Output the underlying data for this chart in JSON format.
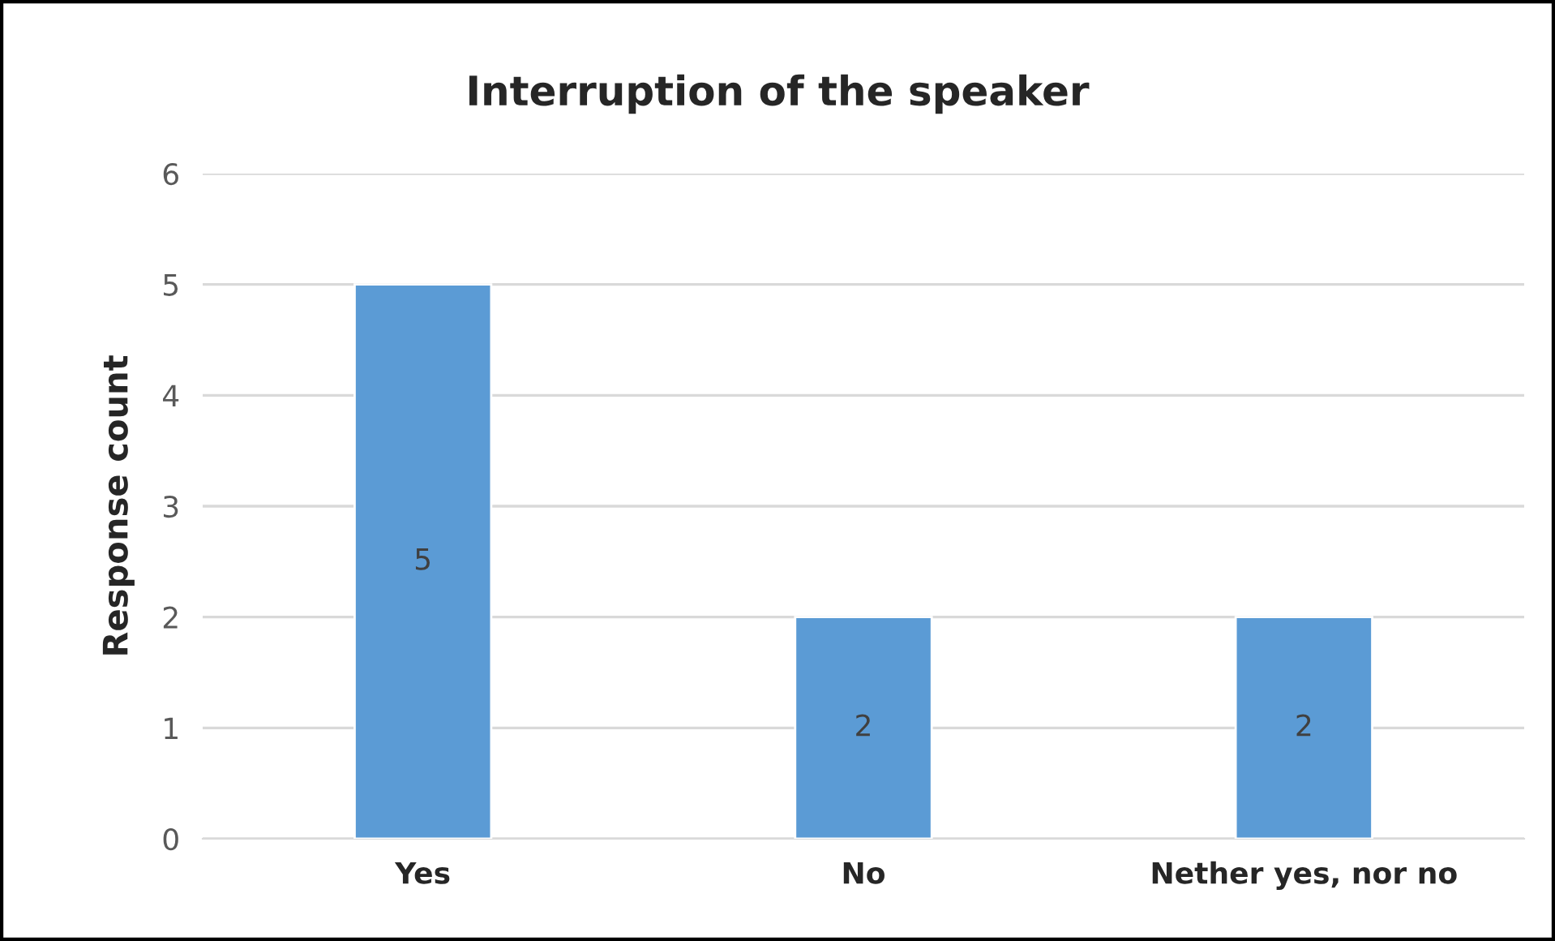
{
  "chart_data": {
    "type": "bar",
    "title": "Interruption of the speaker",
    "ylabel": "Response count",
    "categories": [
      "Yes",
      "No",
      "Nether yes, nor no"
    ],
    "values": [
      5,
      2,
      2
    ],
    "color": "#5b9bd5",
    "ylim": [
      0,
      6
    ],
    "yticks": [
      0,
      1,
      2,
      3,
      4,
      5,
      6
    ],
    "grid": "y",
    "data_labels": true
  }
}
